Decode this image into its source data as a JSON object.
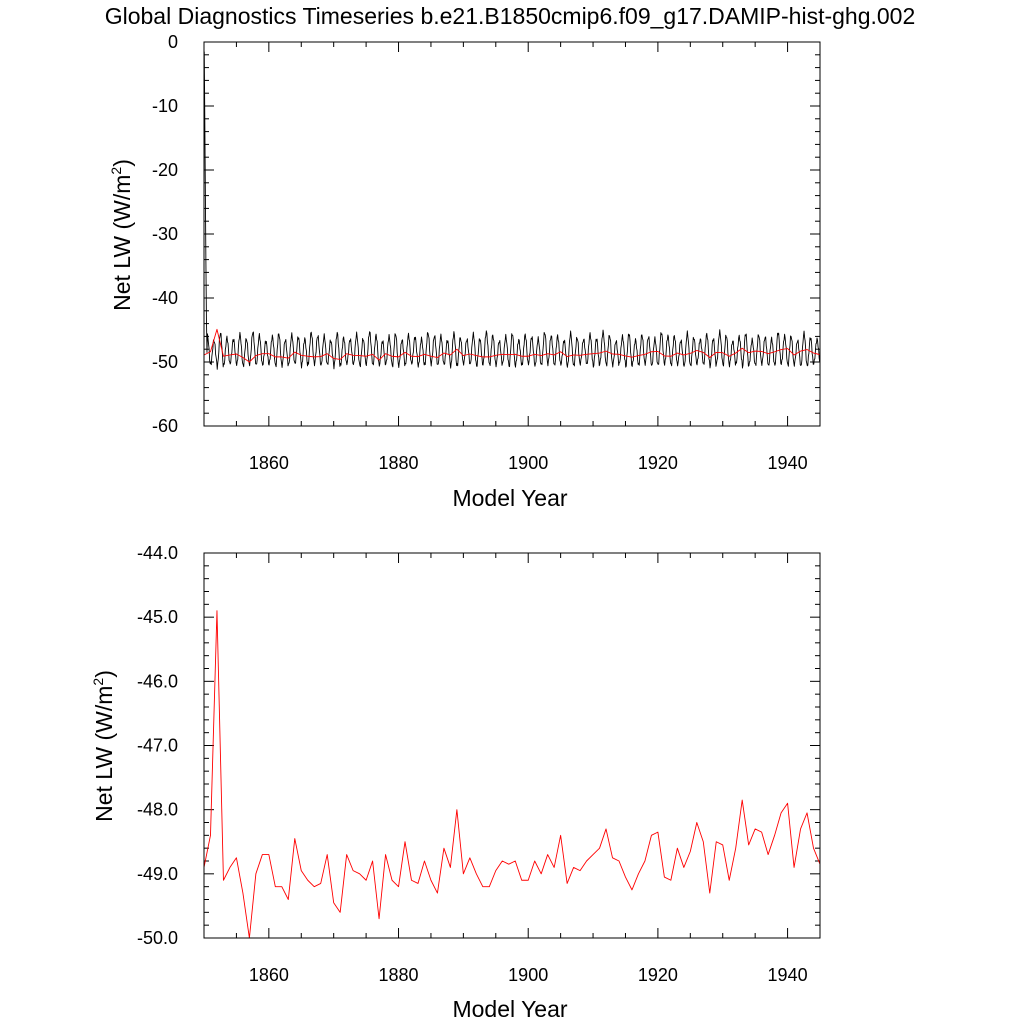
{
  "figure_title": "Global Diagnostics Timeseries b.e21.B1850cmip6.f09_g17.DAMIP-hist-ghg.002",
  "colors": {
    "monthly": "#000000",
    "annual": "#ff0000",
    "frame": "#000000"
  },
  "chart_data": [
    {
      "type": "line",
      "xlabel": "Model Year",
      "ylabel": "Net LW (W/m²)",
      "ylabel_text": "Net LW (W/m",
      "ylabel_sup": "2",
      "ylabel_close": ")",
      "xlim": [
        1850,
        1945
      ],
      "ylim": [
        -60,
        0
      ],
      "xticks": [
        1860,
        1880,
        1900,
        1920,
        1940
      ],
      "xtick_labels": [
        "1860",
        "1880",
        "1900",
        "1920",
        "1940"
      ],
      "yticks": [
        0,
        -10,
        -20,
        -30,
        -40,
        -50,
        -60
      ],
      "ytick_labels": [
        "0",
        "-10",
        "-20",
        "-30",
        "-40",
        "-50",
        "-60"
      ],
      "grid": false,
      "series": [
        {
          "color": "#000000",
          "style": "monthly",
          "start_year": 1850.04,
          "step": 0.0833333,
          "spinup": [
            -1.5,
            -12.0,
            -23.0,
            -34.0,
            -43.0,
            -48.5
          ],
          "cycle_peak": -46.2,
          "cycle_trough": -50.4,
          "peak_noise": [
            0.3,
            -0.5,
            0.8,
            0.0,
            -0.3,
            0.6,
            -0.2,
            1.0,
            0.4,
            -0.6,
            0.2,
            0.7,
            -0.4,
            0.5,
            0.1,
            -0.2,
            0.9,
            0.3
          ]
        },
        {
          "color": "#ff0000",
          "style": "annual",
          "x": [
            1850,
            1851,
            1852,
            1853,
            1854,
            1855,
            1856,
            1857,
            1858,
            1859,
            1860,
            1861,
            1862,
            1863,
            1864,
            1865,
            1866,
            1867,
            1868,
            1869,
            1870,
            1871,
            1872,
            1873,
            1874,
            1875,
            1876,
            1877,
            1878,
            1879,
            1880,
            1881,
            1882,
            1883,
            1884,
            1885,
            1886,
            1887,
            1888,
            1889,
            1890,
            1891,
            1892,
            1893,
            1894,
            1895,
            1896,
            1897,
            1898,
            1899,
            1900,
            1901,
            1902,
            1903,
            1904,
            1905,
            1906,
            1907,
            1908,
            1909,
            1910,
            1911,
            1912,
            1913,
            1914,
            1915,
            1916,
            1917,
            1918,
            1919,
            1920,
            1921,
            1922,
            1923,
            1924,
            1925,
            1926,
            1927,
            1928,
            1929,
            1930,
            1931,
            1932,
            1933,
            1934,
            1935,
            1936,
            1937,
            1938,
            1939,
            1940,
            1941,
            1942,
            1943,
            1944,
            1945
          ],
          "y": [
            -48.9,
            -48.4,
            -44.9,
            -49.1,
            -48.9,
            -48.75,
            -49.3,
            -50.0,
            -49.0,
            -48.7,
            -48.7,
            -49.2,
            -49.2,
            -49.4,
            -48.45,
            -48.95,
            -49.1,
            -49.2,
            -49.15,
            -48.7,
            -49.45,
            -49.6,
            -48.7,
            -48.95,
            -49.0,
            -49.1,
            -48.8,
            -49.7,
            -48.7,
            -49.1,
            -49.2,
            -48.5,
            -49.1,
            -49.15,
            -48.8,
            -49.1,
            -49.3,
            -48.6,
            -48.9,
            -48.0,
            -49.0,
            -48.75,
            -49.0,
            -49.2,
            -49.2,
            -48.95,
            -48.8,
            -48.85,
            -48.8,
            -49.1,
            -49.1,
            -48.8,
            -49.0,
            -48.7,
            -48.9,
            -48.4,
            -49.15,
            -48.9,
            -48.95,
            -48.8,
            -48.7,
            -48.6,
            -48.3,
            -48.75,
            -48.8,
            -49.05,
            -49.25,
            -49.0,
            -48.8,
            -48.4,
            -48.35,
            -49.05,
            -49.1,
            -48.6,
            -48.9,
            -48.65,
            -48.2,
            -48.5,
            -49.3,
            -48.5,
            -48.55,
            -49.1,
            -48.6,
            -47.85,
            -48.55,
            -48.3,
            -48.35,
            -48.7,
            -48.4,
            -48.05,
            -47.9,
            -48.9,
            -48.3,
            -48.05,
            -48.6,
            -48.85
          ]
        }
      ]
    },
    {
      "type": "line",
      "xlabel": "Model Year",
      "ylabel": "Net LW (W/m²)",
      "ylabel_text": "Net LW (W/m",
      "ylabel_sup": "2",
      "ylabel_close": ")",
      "xlim": [
        1850,
        1945
      ],
      "ylim": [
        -50.0,
        -44.0
      ],
      "xticks": [
        1860,
        1880,
        1900,
        1920,
        1940
      ],
      "xtick_labels": [
        "1860",
        "1880",
        "1900",
        "1920",
        "1940"
      ],
      "yticks": [
        -44.0,
        -45.0,
        -46.0,
        -47.0,
        -48.0,
        -49.0,
        -50.0
      ],
      "ytick_labels": [
        "-44.0",
        "-45.0",
        "-46.0",
        "-47.0",
        "-48.0",
        "-49.0",
        "-50.0"
      ],
      "grid": false,
      "series": [
        {
          "color": "#ff0000",
          "style": "annual",
          "x": [
            1850,
            1851,
            1852,
            1853,
            1854,
            1855,
            1856,
            1857,
            1858,
            1859,
            1860,
            1861,
            1862,
            1863,
            1864,
            1865,
            1866,
            1867,
            1868,
            1869,
            1870,
            1871,
            1872,
            1873,
            1874,
            1875,
            1876,
            1877,
            1878,
            1879,
            1880,
            1881,
            1882,
            1883,
            1884,
            1885,
            1886,
            1887,
            1888,
            1889,
            1890,
            1891,
            1892,
            1893,
            1894,
            1895,
            1896,
            1897,
            1898,
            1899,
            1900,
            1901,
            1902,
            1903,
            1904,
            1905,
            1906,
            1907,
            1908,
            1909,
            1910,
            1911,
            1912,
            1913,
            1914,
            1915,
            1916,
            1917,
            1918,
            1919,
            1920,
            1921,
            1922,
            1923,
            1924,
            1925,
            1926,
            1927,
            1928,
            1929,
            1930,
            1931,
            1932,
            1933,
            1934,
            1935,
            1936,
            1937,
            1938,
            1939,
            1940,
            1941,
            1942,
            1943,
            1944,
            1945
          ],
          "y": [
            -48.9,
            -48.4,
            -44.9,
            -49.1,
            -48.9,
            -48.75,
            -49.3,
            -50.0,
            -49.0,
            -48.7,
            -48.7,
            -49.2,
            -49.2,
            -49.4,
            -48.45,
            -48.95,
            -49.1,
            -49.2,
            -49.15,
            -48.7,
            -49.45,
            -49.6,
            -48.7,
            -48.95,
            -49.0,
            -49.1,
            -48.8,
            -49.7,
            -48.7,
            -49.1,
            -49.2,
            -48.5,
            -49.1,
            -49.15,
            -48.8,
            -49.1,
            -49.3,
            -48.6,
            -48.9,
            -48.0,
            -49.0,
            -48.75,
            -49.0,
            -49.2,
            -49.2,
            -48.95,
            -48.8,
            -48.85,
            -48.8,
            -49.1,
            -49.1,
            -48.8,
            -49.0,
            -48.7,
            -48.9,
            -48.4,
            -49.15,
            -48.9,
            -48.95,
            -48.8,
            -48.7,
            -48.6,
            -48.3,
            -48.75,
            -48.8,
            -49.05,
            -49.25,
            -49.0,
            -48.8,
            -48.4,
            -48.35,
            -49.05,
            -49.1,
            -48.6,
            -48.9,
            -48.65,
            -48.2,
            -48.5,
            -49.3,
            -48.5,
            -48.55,
            -49.1,
            -48.6,
            -47.85,
            -48.55,
            -48.3,
            -48.35,
            -48.7,
            -48.4,
            -48.05,
            -47.9,
            -48.9,
            -48.3,
            -48.05,
            -48.6,
            -48.85
          ]
        }
      ]
    }
  ]
}
